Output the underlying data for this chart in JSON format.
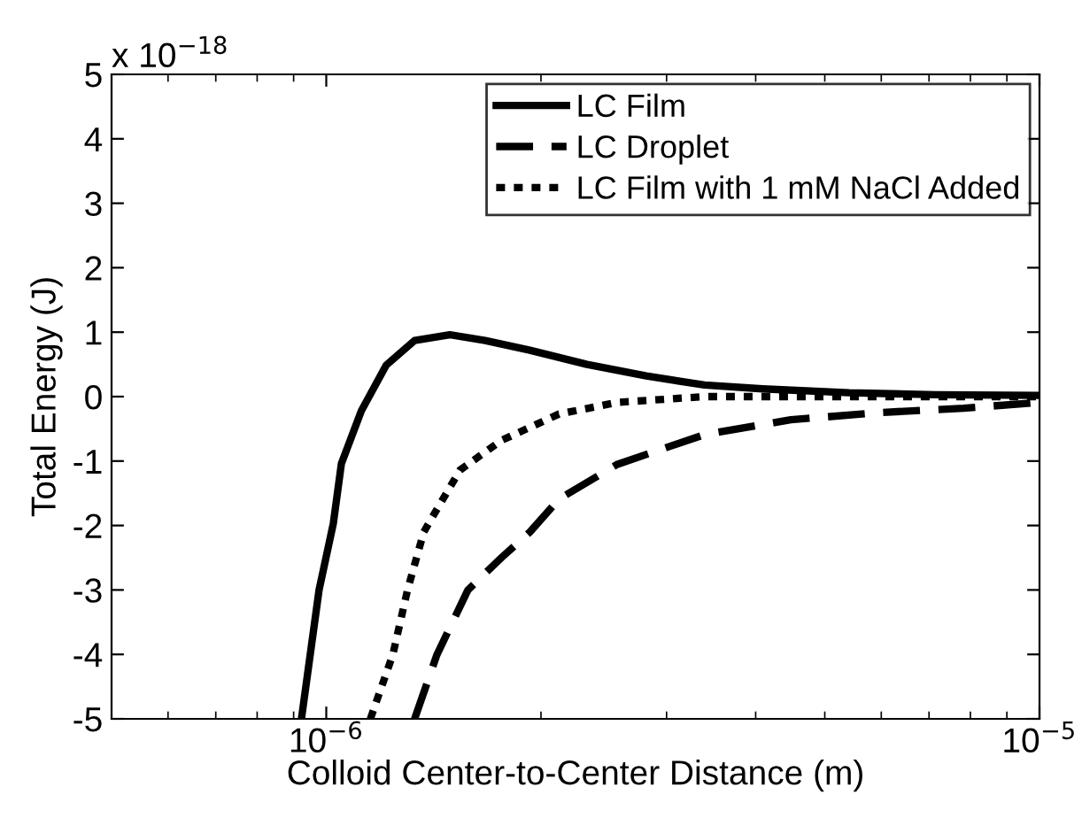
{
  "chart_data": {
    "type": "line",
    "xlabel": "Colloid Center-to-Center Distance (m)",
    "ylabel": "Total Energy (J)",
    "annotations": [
      "x 10$^{−18}$"
    ],
    "log": "x",
    "xlim": [
      5e-07,
      1e-05
    ],
    "xticks": [
      {
        "value": 1e-06,
        "label": "10$^{−6}$"
      },
      {
        "value": 1e-05,
        "label": "10$^{−5}$"
      }
    ],
    "ylim": [
      -5,
      5
    ],
    "yticks": [
      -5,
      -4,
      -3,
      -2,
      -1,
      0,
      1,
      2,
      3,
      4,
      5
    ],
    "grid": false,
    "legend": "top right",
    "marker": "none",
    "series": [
      {
        "name": "LC Film",
        "color": "#000000",
        "line_style": "solid",
        "x": [
          9.23e-07,
          9.77e-07,
          1.023e-06,
          1.05e-06,
          1.12e-06,
          1.214e-06,
          1.33e-06,
          1.49e-06,
          1.67e-06,
          1.93e-06,
          2.32e-06,
          2.81e-06,
          3.39e-06,
          4.09e-06,
          5.41e-06,
          7.14e-06,
          1e-05
        ],
        "values": [
          -5,
          -3.0,
          -1.97,
          -1.04,
          -0.22,
          0.49,
          0.87,
          0.96,
          0.87,
          0.72,
          0.5,
          0.32,
          0.18,
          0.12,
          0.06,
          0.03,
          0.02
        ]
      },
      {
        "name": "LC Droplet",
        "color": "#000000",
        "line_style": "dashed",
        "x": [
          1.33e-06,
          1.43e-06,
          1.58e-06,
          1.76e-06,
          1.93e-06,
          2.12e-06,
          2.56e-06,
          3.39e-06,
          4.48e-06,
          5.92e-06,
          7.83e-06,
          1e-05
        ],
        "values": [
          -5,
          -4.0,
          -3.0,
          -2.5,
          -2.1,
          -1.59,
          -1.05,
          -0.59,
          -0.36,
          -0.25,
          -0.18,
          -0.09
        ]
      },
      {
        "name": "LC Film with 1 mM NaCl Added",
        "color": "#000000",
        "line_style": "dotted",
        "x": [
          1.153e-06,
          1.24e-06,
          1.3e-06,
          1.37e-06,
          1.41e-06,
          1.54e-06,
          1.76e-06,
          2.12e-06,
          2.56e-06,
          3.39e-06,
          5e-06,
          1e-05
        ],
        "values": [
          -5,
          -4.0,
          -3.0,
          -2.1,
          -1.86,
          -1.14,
          -0.68,
          -0.27,
          -0.09,
          0.0,
          0.0,
          0.0
        ]
      }
    ]
  }
}
